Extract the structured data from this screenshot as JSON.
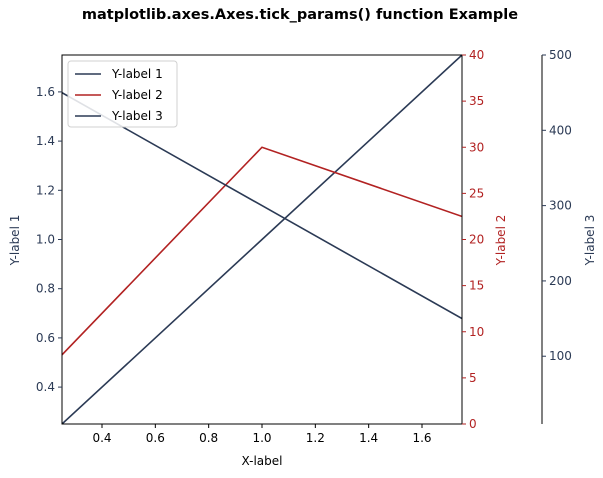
{
  "colors": {
    "axis1": "#2b3a55",
    "axis2": "#b22222",
    "axis3": "#2b3a55",
    "frame": "#000000",
    "legend_border": "#d0d0d0"
  },
  "chart_data": {
    "type": "line",
    "title": "matplotlib.axes.Axes.tick_params() function Example",
    "xlabel": "X-label",
    "xlim": [
      0.25,
      1.75
    ],
    "xticks": [
      0.4,
      0.6,
      0.8,
      1.0,
      1.2,
      1.4,
      1.6
    ],
    "xtick_labels": [
      "0.4",
      "0.6",
      "0.8",
      "1.0",
      "1.2",
      "1.4",
      "1.6"
    ],
    "axes": [
      {
        "id": "y1",
        "label": "Y-label 1",
        "side": "left",
        "ylim": [
          0.25,
          1.75
        ],
        "ticks": [
          0.4,
          0.6,
          0.8,
          1.0,
          1.2,
          1.4,
          1.6
        ],
        "tick_labels": [
          "0.4",
          "0.6",
          "0.8",
          "1.0",
          "1.2",
          "1.4",
          "1.6"
        ]
      },
      {
        "id": "y2",
        "label": "Y-label 2",
        "side": "right",
        "ylim": [
          0,
          40
        ],
        "ticks": [
          0,
          5,
          10,
          15,
          20,
          25,
          30,
          35,
          40
        ],
        "tick_labels": [
          "0",
          "5",
          "10",
          "15",
          "20",
          "25",
          "30",
          "35",
          "40"
        ]
      },
      {
        "id": "y3",
        "label": "Y-label 3",
        "side": "right-offset",
        "ylim": [
          10,
          500
        ],
        "ticks": [
          100,
          200,
          300,
          400,
          500
        ],
        "tick_labels": [
          "100",
          "200",
          "300",
          "400",
          "500"
        ]
      }
    ],
    "series": [
      {
        "name": "Y-label 1",
        "axis": "y1",
        "x": [
          0,
          1,
          2
        ],
        "y": [
          0,
          1,
          2
        ]
      },
      {
        "name": "Y-label 2",
        "axis": "y2",
        "x": [
          0,
          1,
          2
        ],
        "y": [
          0,
          30,
          20
        ]
      },
      {
        "name": "Y-label 3",
        "axis": "y3",
        "x": [
          0,
          1,
          2
        ],
        "y": [
          500,
          300,
          100
        ]
      }
    ],
    "legend": {
      "placement": "upper-left",
      "entries": [
        "Y-label 1",
        "Y-label 2",
        "Y-label 3"
      ]
    },
    "grid": false
  }
}
